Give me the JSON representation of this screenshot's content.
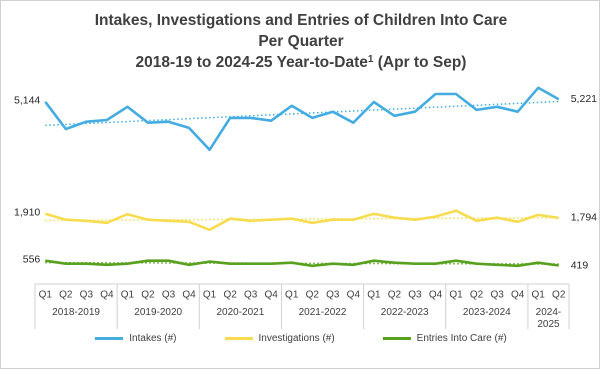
{
  "chart_data": {
    "type": "line",
    "title": [
      "Intakes, Investigations and Entries of Children Into Care",
      "Per Quarter"
    ],
    "subtitle": [
      "2018-19 to 2024-25 Year-to-Date",
      "1",
      " (Apr to Sep)"
    ],
    "categories": [
      "Q1",
      "Q2",
      "Q3",
      "Q4",
      "Q1",
      "Q2",
      "Q3",
      "Q4",
      "Q1",
      "Q2",
      "Q3",
      "Q4",
      "Q1",
      "Q2",
      "Q3",
      "Q4",
      "Q1",
      "Q2",
      "Q3",
      "Q4",
      "Q1",
      "Q2",
      "Q3",
      "Q4",
      "Q1",
      "Q2"
    ],
    "groups": [
      "2018-2019",
      "2019-2020",
      "2020-2021",
      "2021-2022",
      "2022-2023",
      "2023-2024",
      "2024-2025"
    ],
    "ylim": [
      0,
      6900
    ],
    "trendline": true,
    "series": [
      {
        "name": "Intakes (#)",
        "color": "#45ace2",
        "values": [
          5144,
          4360,
          4570,
          4620,
          5000,
          4540,
          4570,
          4390,
          3760,
          4680,
          4680,
          4600,
          5030,
          4680,
          4860,
          4540,
          5140,
          4740,
          4860,
          5370,
          5370,
          4910,
          5000,
          4860,
          5550,
          5221
        ],
        "value_labels": [
          "5,144",
          null,
          null,
          null,
          null,
          null,
          null,
          null,
          null,
          null,
          null,
          null,
          null,
          null,
          null,
          null,
          null,
          null,
          null,
          null,
          null,
          null,
          null,
          null,
          null,
          "5,221"
        ]
      },
      {
        "name": "Investigations (#)",
        "color": "#f7dc50",
        "values": [
          1910,
          1740,
          1710,
          1650,
          1900,
          1740,
          1710,
          1680,
          1450,
          1770,
          1710,
          1740,
          1770,
          1650,
          1740,
          1740,
          1910,
          1800,
          1740,
          1830,
          2000,
          1710,
          1800,
          1680,
          1880,
          1794
        ],
        "value_labels": [
          "1,910",
          null,
          null,
          null,
          null,
          null,
          null,
          null,
          null,
          null,
          null,
          null,
          null,
          null,
          null,
          null,
          null,
          null,
          null,
          null,
          null,
          null,
          null,
          null,
          null,
          "1,794"
        ]
      },
      {
        "name": "Entries Into Care (#)",
        "color": "#58a11f",
        "values": [
          556,
          470,
          470,
          440,
          470,
          556,
          556,
          440,
          530,
          470,
          470,
          470,
          500,
          410,
          470,
          440,
          556,
          500,
          470,
          470,
          556,
          470,
          440,
          410,
          500,
          419
        ],
        "value_labels": [
          "556",
          null,
          null,
          null,
          null,
          null,
          null,
          null,
          null,
          null,
          null,
          null,
          null,
          null,
          null,
          null,
          null,
          null,
          null,
          null,
          null,
          null,
          null,
          null,
          null,
          "419"
        ]
      }
    ]
  }
}
